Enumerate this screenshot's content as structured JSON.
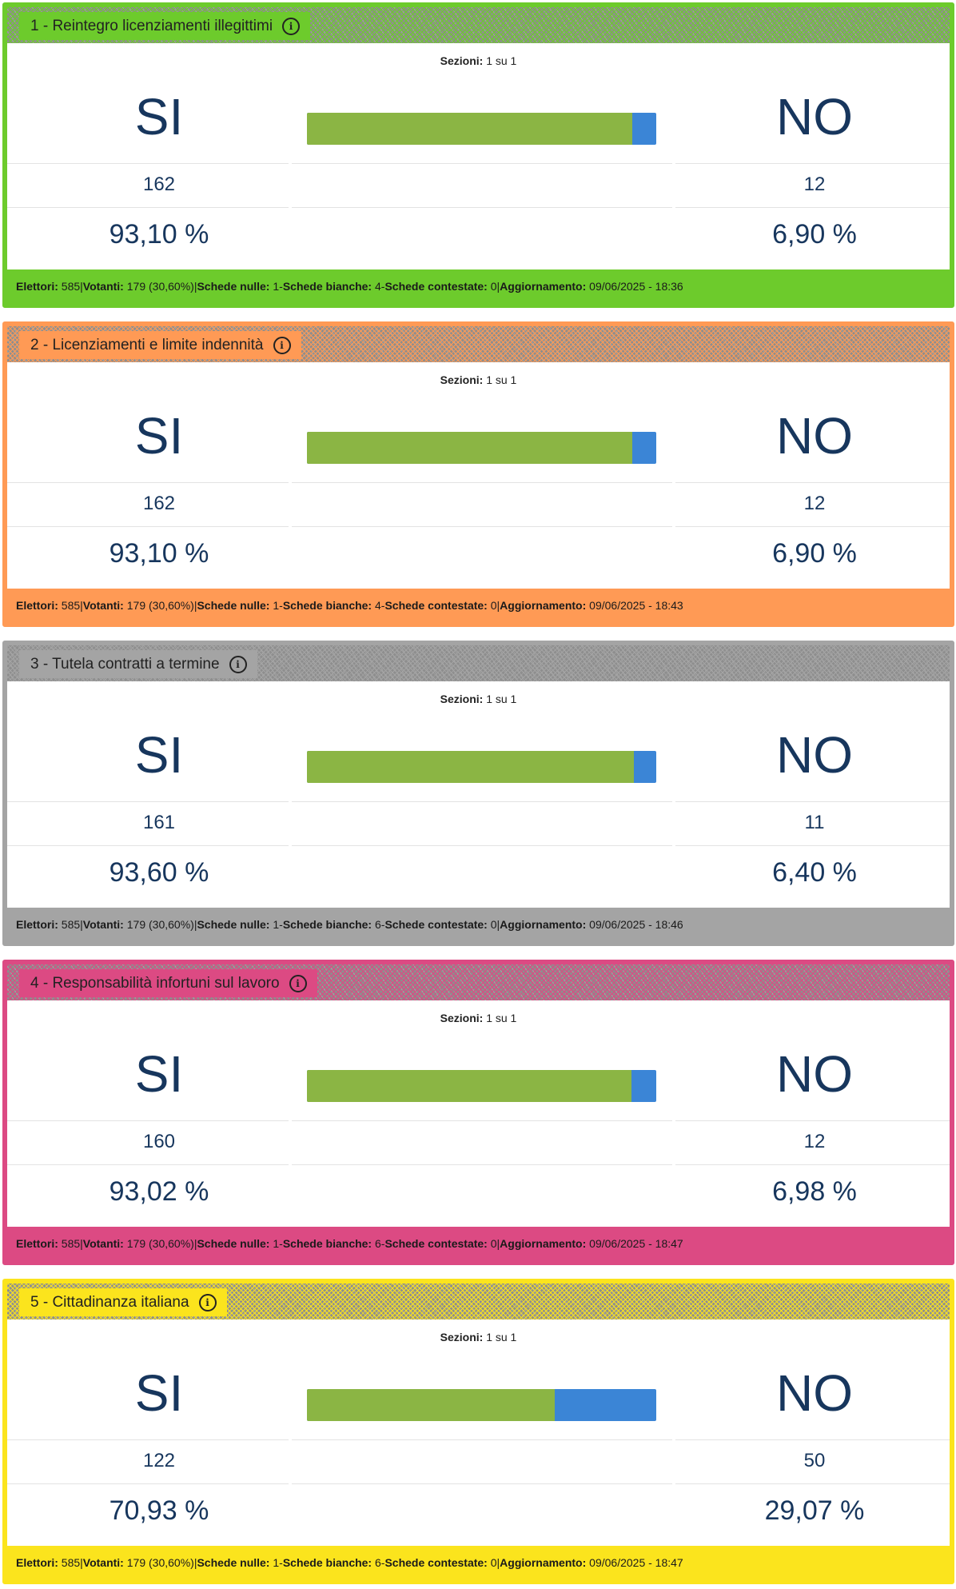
{
  "labels": {
    "sections": "Sezioni:",
    "yes": "SI",
    "no": "NO",
    "electors": "Elettori:",
    "voters": "Votanti:",
    "null_ballots": "Schede nulle:",
    "blank_ballots": "Schede bianche:",
    "contested_ballots": "Schede contestate:",
    "update": "Aggiornamento:",
    "pipe": " | ",
    "dash": " - "
  },
  "icons": {
    "info": "info-icon"
  },
  "colors": {
    "yes_bar": "#8bb544",
    "no_bar": "#3b85d6",
    "text_dark": "#17365d"
  },
  "referendums": [
    {
      "title": "1 - Reintegro licenziamenti illegittimi",
      "accent": "#6dcb2c",
      "sections": "1 su 1",
      "yes_count": "162",
      "no_count": "12",
      "yes_pct": "93,10 %",
      "no_pct": "6,90 %",
      "yes_fraction": 0.931,
      "electors": "585",
      "voters": "179 (30,60%)",
      "null_ballots": "1",
      "blank_ballots": "4",
      "contested_ballots": "0",
      "updated": "09/06/2025 - 18:36"
    },
    {
      "title": "2 - Licenziamenti e limite indennità",
      "accent": "#ff9a55",
      "sections": "1 su 1",
      "yes_count": "162",
      "no_count": "12",
      "yes_pct": "93,10 %",
      "no_pct": "6,90 %",
      "yes_fraction": 0.931,
      "electors": "585",
      "voters": "179 (30,60%)",
      "null_ballots": "1",
      "blank_ballots": "4",
      "contested_ballots": "0",
      "updated": "09/06/2025 - 18:43"
    },
    {
      "title": "3 - Tutela contratti a termine",
      "accent": "#a4a4a4",
      "sections": "1 su 1",
      "yes_count": "161",
      "no_count": "11",
      "yes_pct": "93,60 %",
      "no_pct": "6,40 %",
      "yes_fraction": 0.936,
      "electors": "585",
      "voters": "179 (30,60%)",
      "null_ballots": "1",
      "blank_ballots": "6",
      "contested_ballots": "0",
      "updated": "09/06/2025 - 18:46"
    },
    {
      "title": "4 - Responsabilità infortuni sul lavoro",
      "accent": "#dc4a83",
      "sections": "1 su 1",
      "yes_count": "160",
      "no_count": "12",
      "yes_pct": "93,02 %",
      "no_pct": "6,98 %",
      "yes_fraction": 0.9302,
      "electors": "585",
      "voters": "179 (30,60%)",
      "null_ballots": "1",
      "blank_ballots": "6",
      "contested_ballots": "0",
      "updated": "09/06/2025 - 18:47"
    },
    {
      "title": "5 - Cittadinanza italiana",
      "accent": "#fbe41d",
      "sections": "1 su 1",
      "yes_count": "122",
      "no_count": "50",
      "yes_pct": "70,93 %",
      "no_pct": "29,07 %",
      "yes_fraction": 0.7093,
      "electors": "585",
      "voters": "179 (30,60%)",
      "null_ballots": "1",
      "blank_ballots": "6",
      "contested_ballots": "0",
      "updated": "09/06/2025 - 18:47"
    }
  ]
}
